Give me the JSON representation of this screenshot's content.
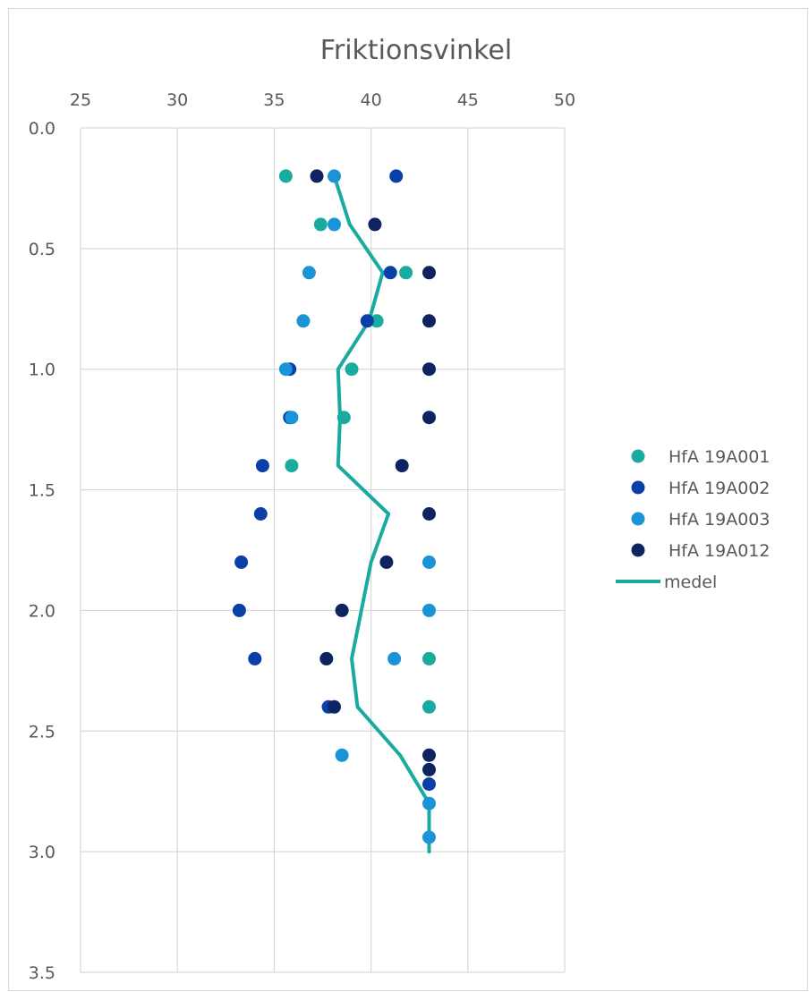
{
  "chart_data": {
    "type": "scatter",
    "title": "Friktionsvinkel",
    "xlabel": "",
    "ylabel": "",
    "xlim": [
      25,
      50
    ],
    "ylim": [
      0,
      3.5
    ],
    "y_inverted": true,
    "x_axis_position": "top",
    "x_ticks": [
      "25",
      "30",
      "35",
      "40",
      "45",
      "50"
    ],
    "y_ticks": [
      "0.0",
      "0.5",
      "1.0",
      "1.5",
      "2.0",
      "2.5",
      "3.0",
      "3.5"
    ],
    "grid": true,
    "legend_position": "right",
    "series": [
      {
        "name": "HfA 19A001",
        "kind": "scatter",
        "color": "#1aaba0",
        "points": [
          [
            35.6,
            0.2
          ],
          [
            37.4,
            0.4
          ],
          [
            41.8,
            0.6
          ],
          [
            40.3,
            0.8
          ],
          [
            39.0,
            1.0
          ],
          [
            38.6,
            1.2
          ],
          [
            35.9,
            1.4
          ],
          [
            43.0,
            2.2
          ],
          [
            43.0,
            2.4
          ]
        ]
      },
      {
        "name": "HfA 19A002",
        "kind": "scatter",
        "color": "#0b3fa8",
        "points": [
          [
            41.3,
            0.2
          ],
          [
            41.0,
            0.6
          ],
          [
            39.8,
            0.8
          ],
          [
            35.8,
            1.0
          ],
          [
            35.8,
            1.2
          ],
          [
            34.4,
            1.4
          ],
          [
            34.3,
            1.6
          ],
          [
            33.3,
            1.8
          ],
          [
            33.2,
            2.0
          ],
          [
            34.0,
            2.2
          ],
          [
            37.8,
            2.4
          ],
          [
            43.0,
            2.72
          ]
        ]
      },
      {
        "name": "HfA 19A003",
        "kind": "scatter",
        "color": "#1a94d6",
        "points": [
          [
            38.1,
            0.2
          ],
          [
            38.1,
            0.4
          ],
          [
            36.8,
            0.6
          ],
          [
            36.5,
            0.8
          ],
          [
            35.6,
            1.0
          ],
          [
            35.9,
            1.2
          ],
          [
            43.0,
            1.8
          ],
          [
            43.0,
            2.0
          ],
          [
            41.2,
            2.2
          ],
          [
            38.5,
            2.6
          ],
          [
            43.0,
            2.8
          ],
          [
            43.0,
            2.94
          ]
        ]
      },
      {
        "name": "HfA 19A012",
        "kind": "scatter",
        "color": "#0d2461",
        "points": [
          [
            37.2,
            0.2
          ],
          [
            40.2,
            0.4
          ],
          [
            43.0,
            0.6
          ],
          [
            43.0,
            0.8
          ],
          [
            43.0,
            1.0
          ],
          [
            43.0,
            1.2
          ],
          [
            41.6,
            1.4
          ],
          [
            43.0,
            1.6
          ],
          [
            40.8,
            1.8
          ],
          [
            38.5,
            2.0
          ],
          [
            37.7,
            2.2
          ],
          [
            38.1,
            2.4
          ],
          [
            43.0,
            2.6
          ],
          [
            43.0,
            2.66
          ]
        ]
      },
      {
        "name": "medel",
        "kind": "line",
        "color": "#1aaba0",
        "points": [
          [
            38.1,
            0.2
          ],
          [
            38.9,
            0.4
          ],
          [
            40.6,
            0.6
          ],
          [
            39.9,
            0.8
          ],
          [
            38.3,
            1.0
          ],
          [
            38.4,
            1.2
          ],
          [
            38.3,
            1.4
          ],
          [
            40.9,
            1.6
          ],
          [
            40.0,
            1.8
          ],
          [
            39.5,
            2.0
          ],
          [
            39.0,
            2.2
          ],
          [
            39.3,
            2.4
          ],
          [
            41.5,
            2.6
          ],
          [
            43.0,
            2.8
          ],
          [
            43.0,
            3.0
          ]
        ]
      }
    ]
  }
}
